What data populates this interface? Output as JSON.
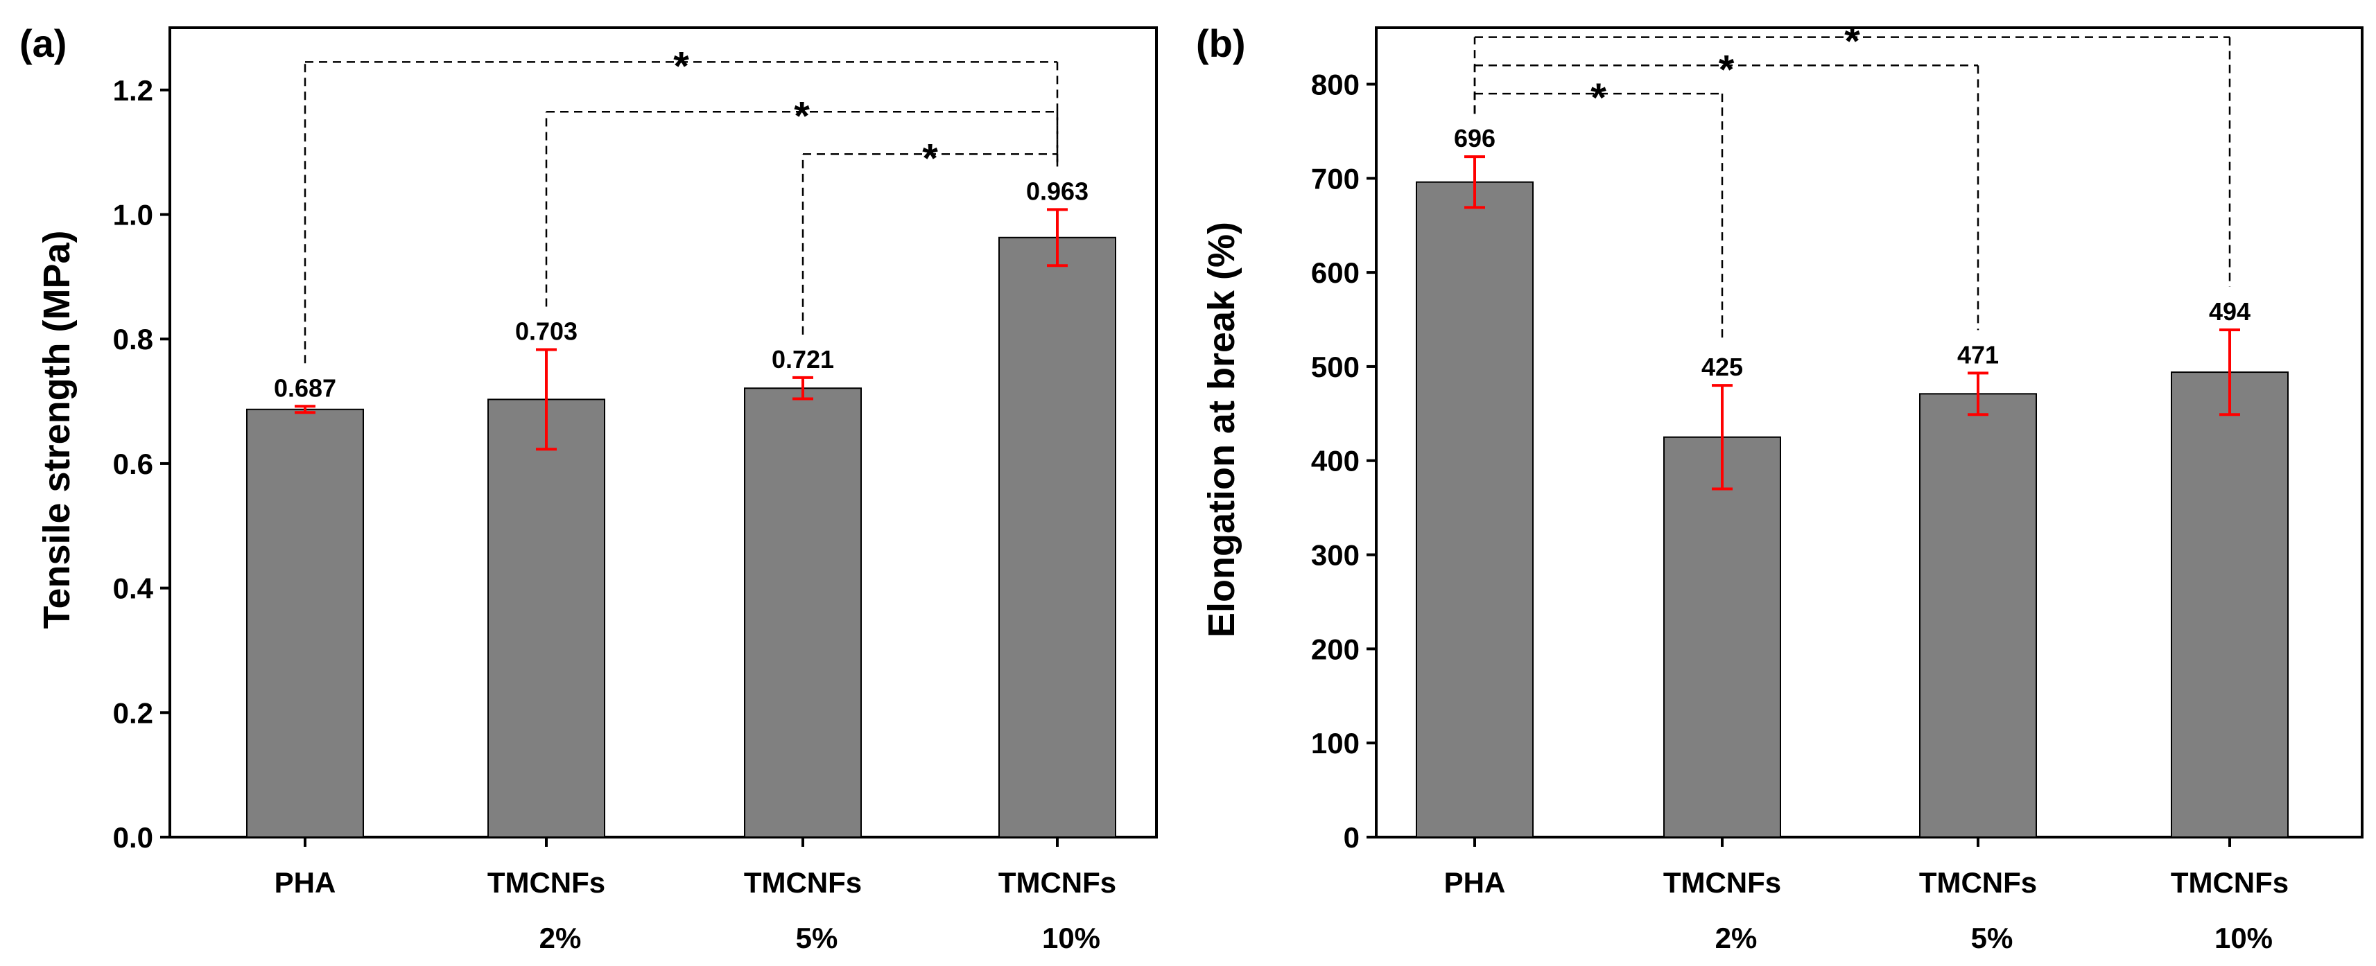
{
  "chart_data": [
    {
      "type": "bar",
      "panel_label": "(a)",
      "ylabel": "Tensile strength (MPa)",
      "ylim": [
        0,
        1.3
      ],
      "yticks": [
        "0.0",
        "0.2",
        "0.4",
        "0.6",
        "0.8",
        "1.0",
        "1.2"
      ],
      "ytick_values": [
        0,
        0.2,
        0.4,
        0.6,
        0.8,
        1.0,
        1.2
      ],
      "categories": [
        {
          "line1": "PHA",
          "line2": ""
        },
        {
          "line1": "TMCNFs",
          "line2": "2%"
        },
        {
          "line1": "TMCNFs",
          "line2": "5%"
        },
        {
          "line1": "TMCNFs",
          "line2": "10%"
        }
      ],
      "values": [
        0.687,
        0.703,
        0.721,
        0.963
      ],
      "value_labels": [
        "0.687",
        "0.703",
        "0.721",
        "0.963"
      ],
      "errors": [
        0.005,
        0.08,
        0.017,
        0.045
      ],
      "significance": [
        {
          "from": 0,
          "to": 3,
          "level": 1.245,
          "label": "*"
        },
        {
          "from": 1,
          "to": 3,
          "level": 1.165,
          "label": "*"
        },
        {
          "from": 2,
          "to": 3,
          "level": 1.097,
          "label": "*"
        }
      ],
      "colors": {
        "bar": "#808080",
        "error": "#ff0000",
        "sig": "#000000"
      }
    },
    {
      "type": "bar",
      "panel_label": "(b)",
      "ylabel": "Elongation at break (%)",
      "ylim": [
        0,
        860
      ],
      "yticks": [
        "0",
        "100",
        "200",
        "300",
        "400",
        "500",
        "600",
        "700",
        "800"
      ],
      "ytick_values": [
        0,
        100,
        200,
        300,
        400,
        500,
        600,
        700,
        800
      ],
      "categories": [
        {
          "line1": "PHA",
          "line2": ""
        },
        {
          "line1": "TMCNFs",
          "line2": "2%"
        },
        {
          "line1": "TMCNFs",
          "line2": "5%"
        },
        {
          "line1": "TMCNFs",
          "line2": "10%"
        }
      ],
      "values": [
        696,
        425,
        471,
        494
      ],
      "value_labels": [
        "696",
        "425",
        "471",
        "494"
      ],
      "errors": [
        27,
        55,
        22,
        45
      ],
      "significance": [
        {
          "from": 0,
          "to": 1,
          "level": 790,
          "label": "*"
        },
        {
          "from": 0,
          "to": 2,
          "level": 820,
          "label": "*"
        },
        {
          "from": 0,
          "to": 3,
          "level": 850,
          "label": "*"
        }
      ],
      "colors": {
        "bar": "#808080",
        "error": "#ff0000",
        "sig": "#000000"
      }
    }
  ]
}
